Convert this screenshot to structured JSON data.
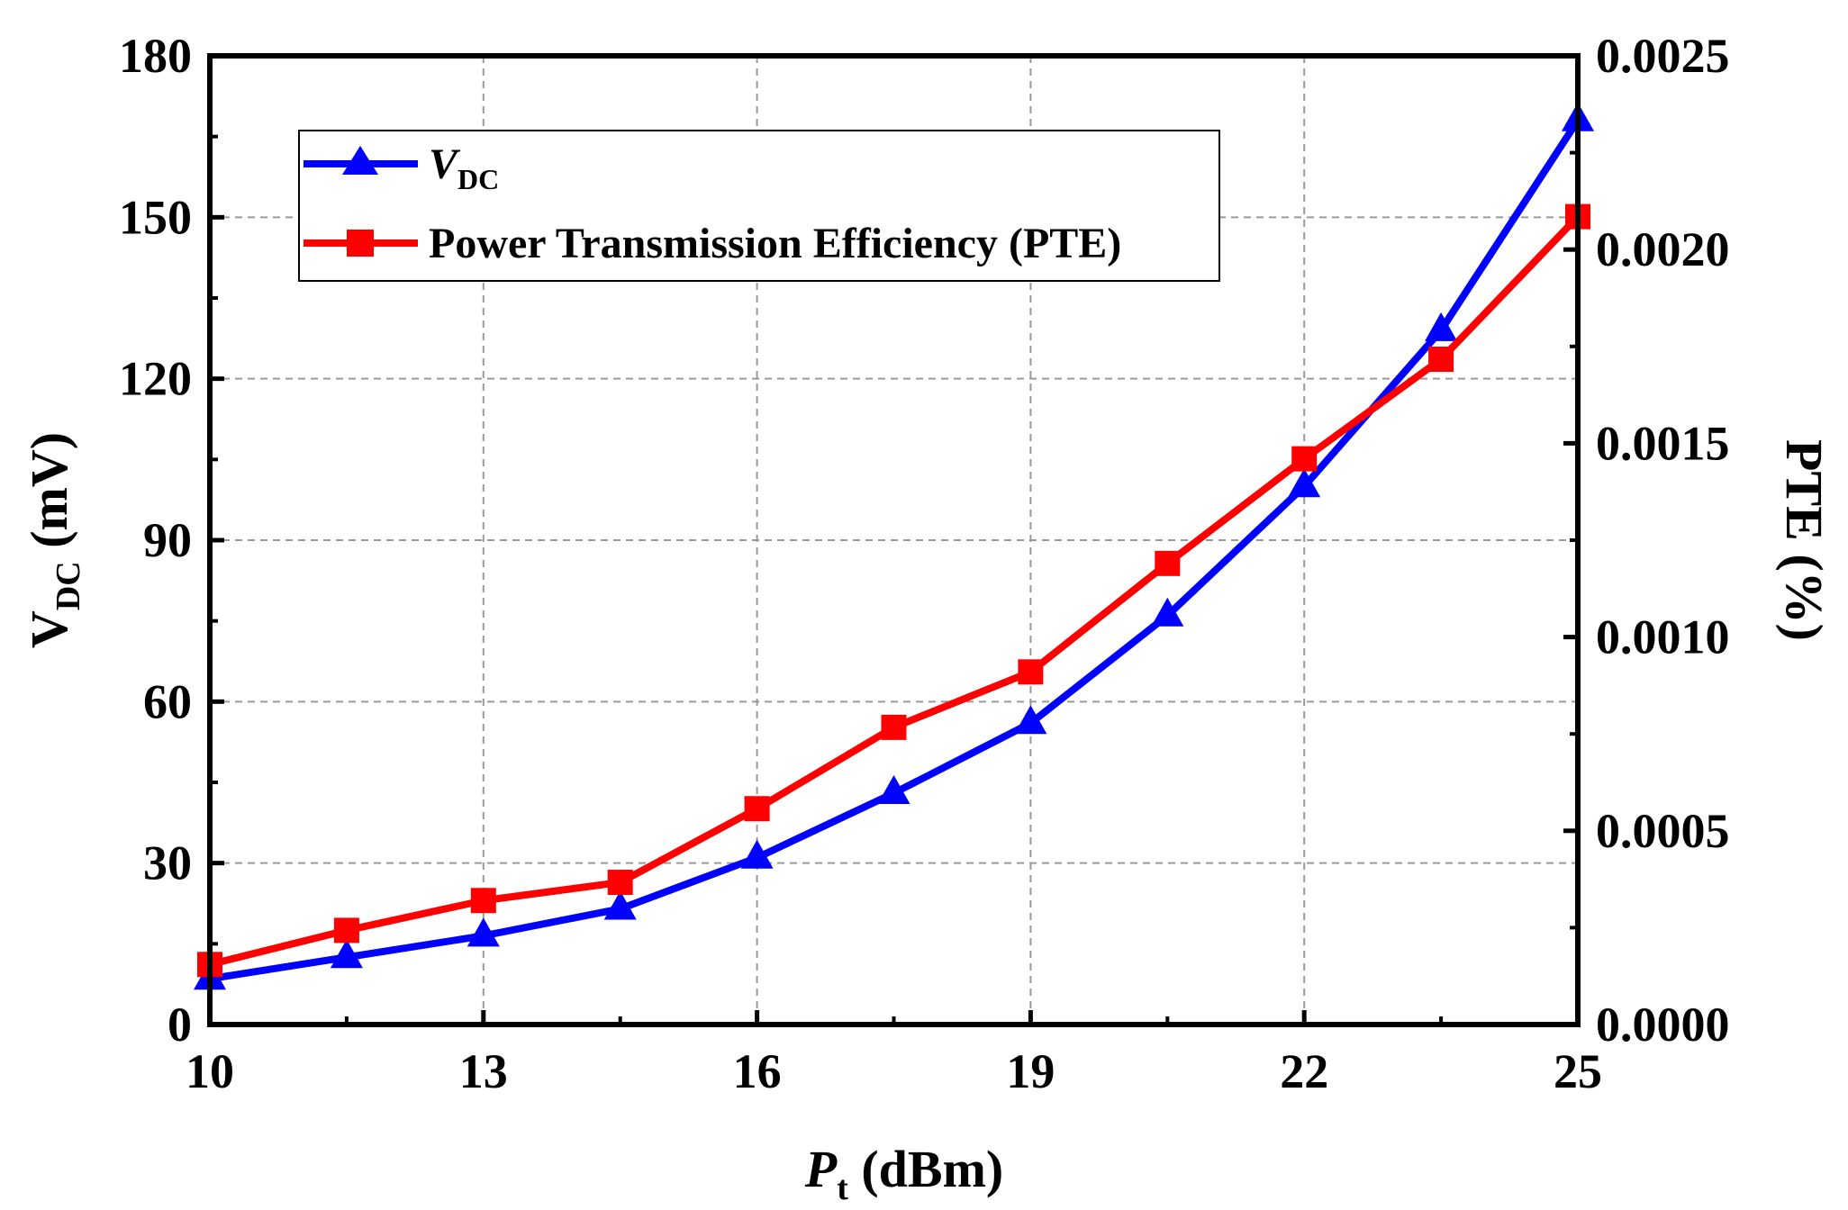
{
  "chart_data": {
    "type": "line",
    "title": "",
    "x": [
      10,
      11.5,
      13,
      14.5,
      16,
      17.5,
      19,
      20.5,
      22,
      23.5,
      25
    ],
    "xlim": [
      10,
      25
    ],
    "xticks": [
      "10",
      "13",
      "16",
      "19",
      "22",
      "25"
    ],
    "xlabel": {
      "main": "P",
      "sub": "t",
      "unit": " (dBm)"
    },
    "ylim_left": [
      0,
      180
    ],
    "yticks_left": [
      "0",
      "30",
      "60",
      "90",
      "120",
      "150",
      "180"
    ],
    "ylabel_left": {
      "main": "V",
      "sub": "DC",
      "unit": " (mV)"
    },
    "ylim_right": [
      0,
      0.0025
    ],
    "yticks_right": [
      "0.0000",
      "0.0005",
      "0.0010",
      "0.0015",
      "0.0020",
      "0.0025"
    ],
    "ylabel_right": "PTE (%)",
    "grid": true,
    "legend_position": "top-left",
    "series": [
      {
        "name": "VDC",
        "legend_main": "V",
        "legend_sub": "DC",
        "axis": "left",
        "marker": "triangle",
        "color": "#0000ff",
        "values": [
          8.5,
          12.5,
          16.5,
          21.5,
          31,
          43,
          56,
          76,
          100,
          129,
          168
        ]
      },
      {
        "name": "Power Transmission Efficiency (PTE)",
        "legend_main": "Power Transmission Efficiency (PTE)",
        "legend_sub": "",
        "axis": "right",
        "marker": "square",
        "color": "#ff0000",
        "values": [
          0.000155,
          0.000243,
          0.00032,
          0.000367,
          0.000557,
          0.000767,
          0.00091,
          0.00119,
          0.00146,
          0.001717,
          0.002085
        ]
      }
    ]
  }
}
